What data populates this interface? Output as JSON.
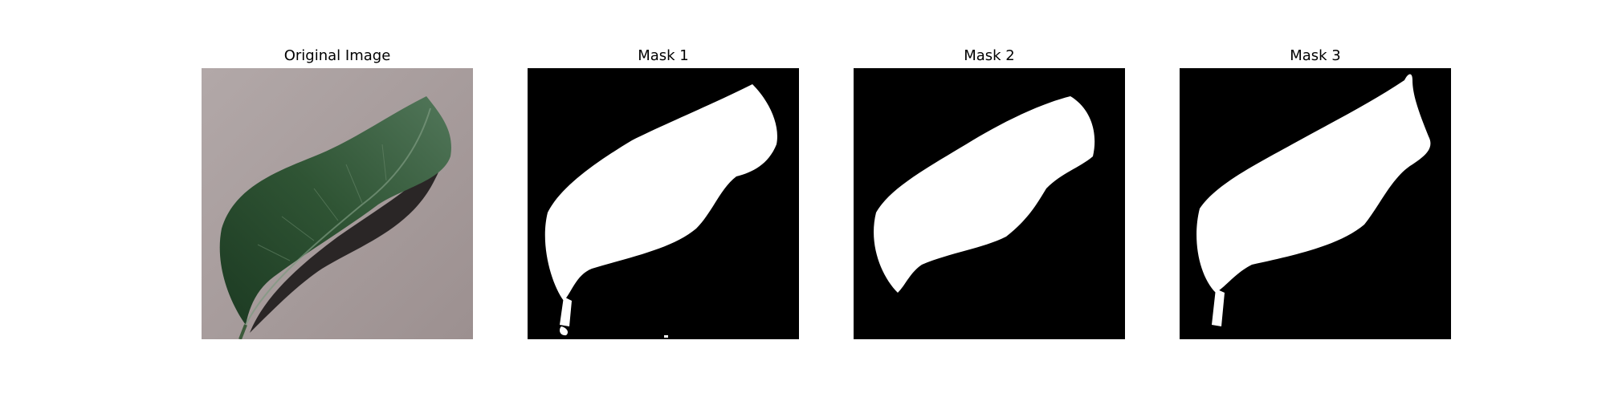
{
  "figure": {
    "panels": [
      {
        "title": "Original Image",
        "kind": "photo"
      },
      {
        "title": "Mask 1",
        "kind": "mask"
      },
      {
        "title": "Mask 2",
        "kind": "mask"
      },
      {
        "title": "Mask 3",
        "kind": "mask"
      }
    ]
  },
  "colors": {
    "photo_background": "#a89e9e",
    "leaf_dark": "#1f3f26",
    "leaf_light": "#4f7452",
    "shadow": "#2a2626",
    "mask_background": "#000000",
    "mask_foreground": "#ffffff"
  }
}
